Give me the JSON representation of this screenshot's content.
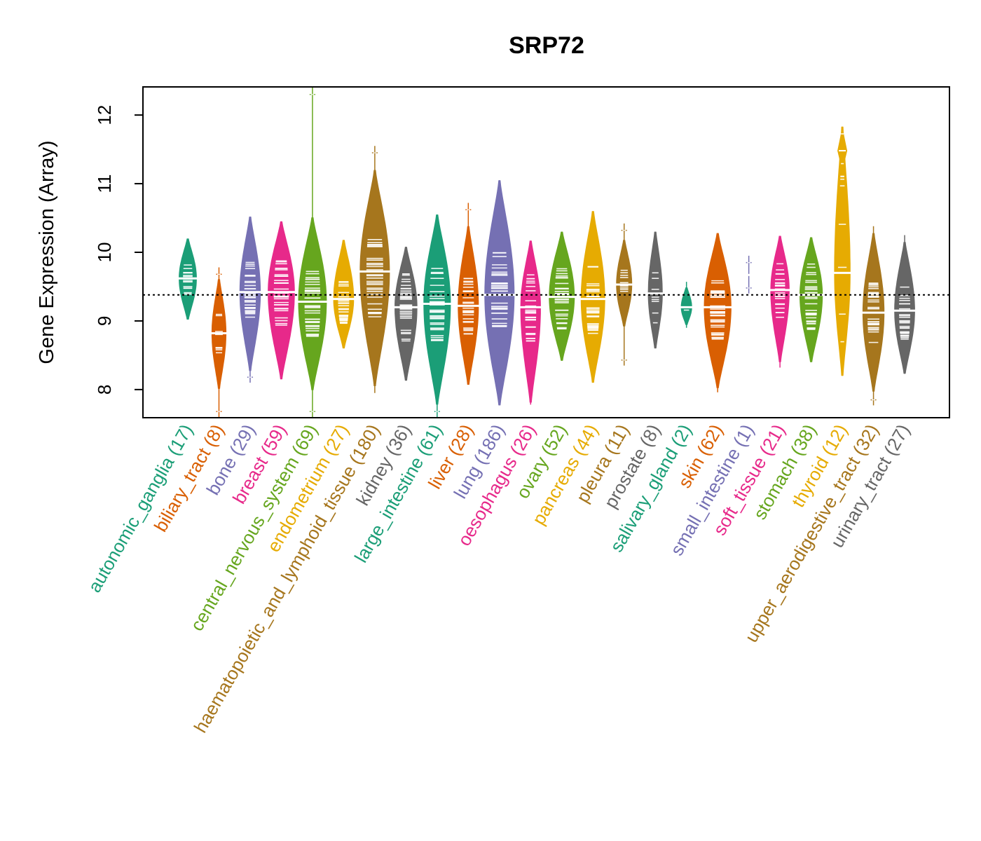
{
  "chart_data": {
    "type": "violin",
    "title": "SRP72",
    "xlabel": "",
    "ylabel": "Gene Expression (Array)",
    "ylim": [
      7.59,
      12.41
    ],
    "yticks": [
      8,
      9,
      10,
      11,
      12
    ],
    "reference_line": {
      "value": 9.38,
      "style": "dotted",
      "color": "#000000"
    },
    "grid": false,
    "legend": "none",
    "categories": [
      {
        "name": "autonomic_ganglia",
        "n": 17,
        "label": "autonomic_ganglia (17)",
        "color": "#1B9E77",
        "median": 9.62,
        "min": 9.02,
        "max": 10.2,
        "q1": 9.45,
        "q3": 9.78
      },
      {
        "name": "biliary_tract",
        "n": 8,
        "label": "biliary_tract (8)",
        "color": "#D95F02",
        "median": 8.82,
        "min": 7.6,
        "max": 9.78,
        "q1": 8.62,
        "q3": 9.0
      },
      {
        "name": "bone",
        "n": 29,
        "label": "bone (29)",
        "color": "#7570B3",
        "median": 9.42,
        "min": 8.1,
        "max": 10.52,
        "q1": 9.15,
        "q3": 9.7
      },
      {
        "name": "breast",
        "n": 59,
        "label": "breast (59)",
        "color": "#E7298A",
        "median": 9.42,
        "min": 8.15,
        "max": 10.45,
        "q1": 9.1,
        "q3": 9.72
      },
      {
        "name": "central_nervous_system",
        "n": 69,
        "label": "central_nervous_system (69)",
        "color": "#66A61E",
        "median": 9.28,
        "min": 7.6,
        "max": 12.4,
        "q1": 8.95,
        "q3": 9.55
      },
      {
        "name": "endometrium",
        "n": 27,
        "label": "endometrium (27)",
        "color": "#E6AB02",
        "median": 9.32,
        "min": 8.6,
        "max": 10.18,
        "q1": 9.1,
        "q3": 9.55
      },
      {
        "name": "haematopoietic_and_lymphoid_tissue",
        "n": 180,
        "label": "haematopoietic_and_lymphoid_tissue (180)",
        "color": "#A6761D",
        "median": 9.72,
        "min": 7.95,
        "max": 11.55,
        "q1": 9.25,
        "q3": 10.0
      },
      {
        "name": "kidney",
        "n": 36,
        "label": "kidney (36)",
        "color": "#666666",
        "median": 9.2,
        "min": 8.13,
        "max": 10.08,
        "q1": 8.85,
        "q3": 9.5
      },
      {
        "name": "large_intestine",
        "n": 61,
        "label": "large_intestine (61)",
        "color": "#1B9E77",
        "median": 9.25,
        "min": 7.6,
        "max": 10.55,
        "q1": 8.9,
        "q3": 9.6
      },
      {
        "name": "liver",
        "n": 28,
        "label": "liver (28)",
        "color": "#D95F02",
        "median": 9.22,
        "min": 8.07,
        "max": 10.72,
        "q1": 8.95,
        "q3": 9.5
      },
      {
        "name": "lung",
        "n": 186,
        "label": "lung (186)",
        "color": "#7570B3",
        "median": 9.38,
        "min": 7.77,
        "max": 11.05,
        "q1": 9.0,
        "q3": 9.8
      },
      {
        "name": "oesophagus",
        "n": 26,
        "label": "oesophagus (26)",
        "color": "#E7298A",
        "median": 9.2,
        "min": 7.78,
        "max": 10.17,
        "q1": 8.85,
        "q3": 9.5
      },
      {
        "name": "ovary",
        "n": 52,
        "label": "ovary (52)",
        "color": "#66A61E",
        "median": 9.35,
        "min": 8.42,
        "max": 10.3,
        "q1": 9.05,
        "q3": 9.6
      },
      {
        "name": "pancreas",
        "n": 44,
        "label": "pancreas (44)",
        "color": "#E6AB02",
        "median": 9.32,
        "min": 8.1,
        "max": 10.6,
        "q1": 9.0,
        "q3": 9.65
      },
      {
        "name": "pleura",
        "n": 11,
        "label": "pleura (11)",
        "color": "#A6761D",
        "median": 9.53,
        "min": 8.35,
        "max": 10.42,
        "q1": 9.4,
        "q3": 9.7
      },
      {
        "name": "prostate",
        "n": 8,
        "label": "prostate (8)",
        "color": "#666666",
        "median": 9.4,
        "min": 8.6,
        "max": 10.3,
        "q1": 9.05,
        "q3": 9.65
      },
      {
        "name": "salivary_gland",
        "n": 2,
        "label": "salivary_gland (2)",
        "color": "#1B9E77",
        "median": 9.2,
        "min": 8.9,
        "max": 9.57,
        "q1": 9.15,
        "q3": 9.28
      },
      {
        "name": "skin",
        "n": 62,
        "label": "skin (62)",
        "color": "#D95F02",
        "median": 9.2,
        "min": 7.96,
        "max": 10.28,
        "q1": 8.9,
        "q3": 9.45
      },
      {
        "name": "small_intestine",
        "n": 1,
        "label": "small_intestine (1)",
        "color": "#7570B3",
        "median": 9.67,
        "min": 9.4,
        "max": 9.95,
        "q1": 9.67,
        "q3": 9.67
      },
      {
        "name": "soft_tissue",
        "n": 21,
        "label": "soft_tissue (21)",
        "color": "#E7298A",
        "median": 9.45,
        "min": 8.32,
        "max": 10.24,
        "q1": 9.2,
        "q3": 9.7
      },
      {
        "name": "stomach",
        "n": 38,
        "label": "stomach (38)",
        "color": "#66A61E",
        "median": 9.38,
        "min": 8.4,
        "max": 10.22,
        "q1": 9.05,
        "q3": 9.65
      },
      {
        "name": "thyroid",
        "n": 12,
        "label": "thyroid (12)",
        "color": "#E6AB02",
        "median": 9.7,
        "min": 8.2,
        "max": 11.83,
        "q1": 9.3,
        "q3": 11.48
      },
      {
        "name": "upper_aerodigestive_tract",
        "n": 32,
        "label": "upper_aerodigestive_tract (32)",
        "color": "#A6761D",
        "median": 9.12,
        "min": 7.77,
        "max": 10.38,
        "q1": 8.85,
        "q3": 9.4
      },
      {
        "name": "urinary_tract",
        "n": 27,
        "label": "urinary_tract (27)",
        "color": "#666666",
        "median": 9.15,
        "min": 8.23,
        "max": 10.25,
        "q1": 8.85,
        "q3": 9.35
      }
    ]
  }
}
